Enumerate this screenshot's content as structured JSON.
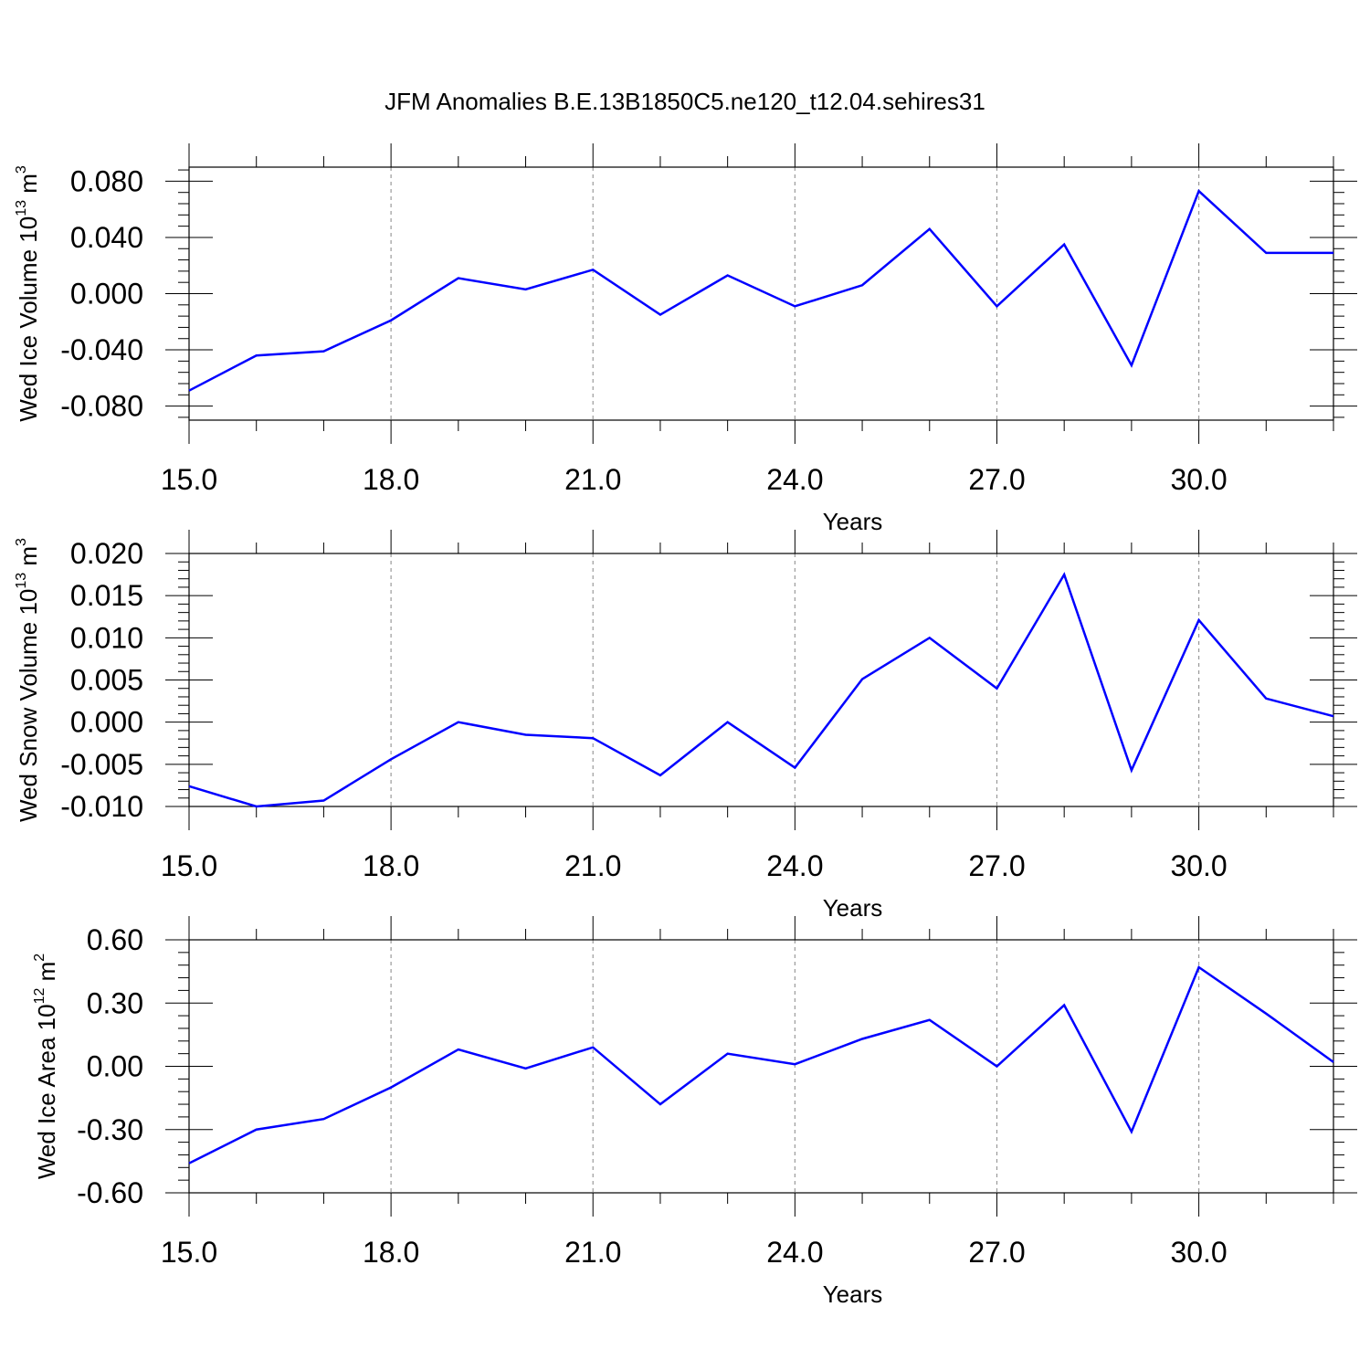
{
  "title": "JFM Anomalies B.E.13B1850C5.ne120_t12.04.sehires31",
  "colors": {
    "line": "#0000ff",
    "grid": "#999999",
    "axis": "#000000"
  },
  "chart_data": [
    {
      "type": "line",
      "ylabel": {
        "main": "Wed Ice Volume 10",
        "exp": "13",
        "unit": " m",
        "unit_exp": "3"
      },
      "xlabel": "Years",
      "xlim": [
        15,
        32
      ],
      "ylim": [
        -0.09,
        0.09
      ],
      "xticks": [
        15,
        18,
        21,
        24,
        27,
        30
      ],
      "xtick_labels": [
        "15.0",
        "18.0",
        "21.0",
        "24.0",
        "27.0",
        "30.0"
      ],
      "yticks": [
        -0.08,
        -0.04,
        0.0,
        0.04,
        0.08
      ],
      "ytick_labels": [
        "-0.080",
        "-0.040",
        "0.000",
        "0.040",
        "0.080"
      ],
      "series": [
        {
          "name": "Wed Ice Volume",
          "x": [
            15,
            16,
            17,
            18,
            19,
            20,
            21,
            22,
            23,
            24,
            25,
            26,
            27,
            28,
            29,
            30,
            31,
            32
          ],
          "values": [
            -0.069,
            -0.044,
            -0.041,
            -0.019,
            0.011,
            0.003,
            0.017,
            -0.015,
            0.013,
            -0.009,
            0.006,
            0.046,
            -0.009,
            0.035,
            -0.051,
            0.073,
            0.029,
            0.029
          ]
        }
      ]
    },
    {
      "type": "line",
      "ylabel": {
        "main": "Wed Snow Volume 10",
        "exp": "13",
        "unit": " m",
        "unit_exp": "3"
      },
      "xlabel": "Years",
      "xlim": [
        15,
        32
      ],
      "ylim": [
        -0.01,
        0.02
      ],
      "xticks": [
        15,
        18,
        21,
        24,
        27,
        30
      ],
      "xtick_labels": [
        "15.0",
        "18.0",
        "21.0",
        "24.0",
        "27.0",
        "30.0"
      ],
      "yticks": [
        -0.01,
        -0.005,
        0.0,
        0.005,
        0.01,
        0.015,
        0.02
      ],
      "ytick_labels": [
        "-0.010",
        "-0.005",
        "0.000",
        "0.005",
        "0.010",
        "0.015",
        "0.020"
      ],
      "series": [
        {
          "name": "Wed Snow Volume",
          "x": [
            15,
            16,
            17,
            18,
            19,
            20,
            21,
            22,
            23,
            24,
            25,
            26,
            27,
            28,
            29,
            30,
            31,
            32
          ],
          "values": [
            -0.0076,
            -0.01,
            -0.0093,
            -0.0044,
            0.0,
            -0.0015,
            -0.0019,
            -0.0063,
            0.0,
            -0.0054,
            0.0051,
            0.01,
            0.004,
            0.0175,
            -0.0057,
            0.0121,
            0.0028,
            0.0007
          ]
        }
      ]
    },
    {
      "type": "line",
      "ylabel": {
        "main": "Wed Ice Area 10",
        "exp": "12",
        "unit": " m",
        "unit_exp": "2"
      },
      "xlabel": "Years",
      "xlim": [
        15,
        32
      ],
      "ylim": [
        -0.6,
        0.6
      ],
      "xticks": [
        15,
        18,
        21,
        24,
        27,
        30
      ],
      "xtick_labels": [
        "15.0",
        "18.0",
        "21.0",
        "24.0",
        "27.0",
        "30.0"
      ],
      "yticks": [
        -0.6,
        -0.3,
        0.0,
        0.3,
        0.6
      ],
      "ytick_labels": [
        "-0.60",
        "-0.30",
        "0.00",
        "0.30",
        "0.60"
      ],
      "series": [
        {
          "name": "Wed Ice Area",
          "x": [
            15,
            16,
            17,
            18,
            19,
            20,
            21,
            22,
            23,
            24,
            25,
            26,
            27,
            28,
            29,
            30,
            31,
            32
          ],
          "values": [
            -0.46,
            -0.3,
            -0.25,
            -0.1,
            0.08,
            -0.01,
            0.09,
            -0.18,
            0.06,
            0.01,
            0.13,
            0.22,
            0.0,
            0.29,
            -0.31,
            0.47,
            0.25,
            0.02
          ]
        }
      ]
    }
  ]
}
